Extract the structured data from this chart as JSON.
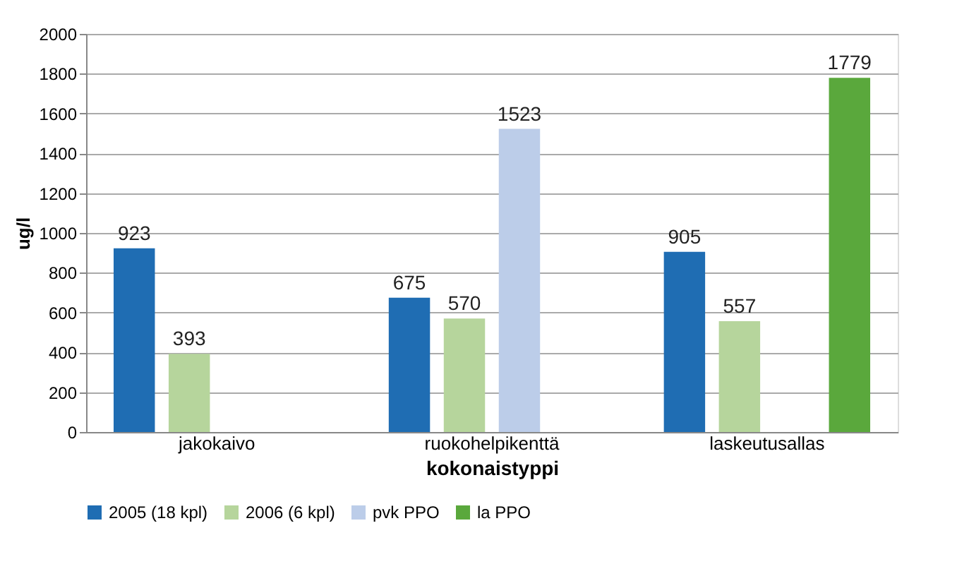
{
  "chart_data": {
    "type": "bar",
    "xlabel": "kokonaistyppi",
    "ylabel": "ug/l",
    "categories": [
      "jakokaivo",
      "ruokohelpikenttä",
      "laskeutusallas"
    ],
    "series": [
      {
        "name": "2005 (18 kpl)",
        "color": "#1f6db3",
        "values": [
          923,
          675,
          905
        ]
      },
      {
        "name": "2006 (6 kpl)",
        "color": "#b6d59c",
        "values": [
          393,
          570,
          557
        ]
      },
      {
        "name": "pvk PPO",
        "color": "#bccde9",
        "values": [
          null,
          1523,
          null
        ]
      },
      {
        "name": "la PPO",
        "color": "#5aa83c",
        "values": [
          null,
          null,
          1779
        ]
      }
    ],
    "ylim": [
      0,
      2000
    ],
    "yticks": [
      0,
      200,
      400,
      600,
      800,
      1000,
      1200,
      1400,
      1600,
      1800,
      2000
    ],
    "grid": "y",
    "legend": "bottom",
    "data_labels": true
  }
}
